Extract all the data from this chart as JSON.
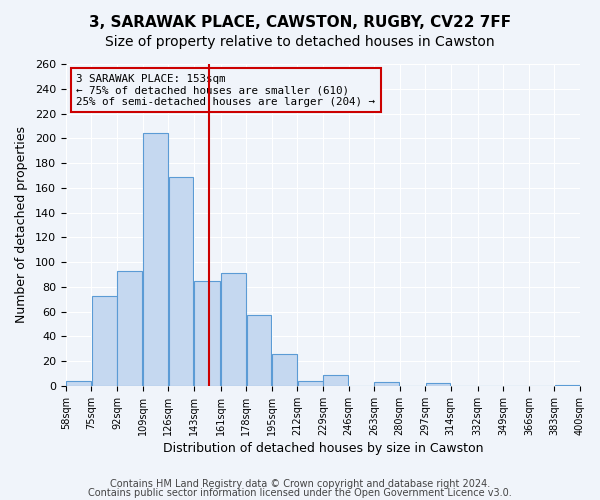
{
  "title": "3, SARAWAK PLACE, CAWSTON, RUGBY, CV22 7FF",
  "subtitle": "Size of property relative to detached houses in Cawston",
  "xlabel": "Distribution of detached houses by size in Cawston",
  "ylabel": "Number of detached properties",
  "bin_labels": [
    "58sqm",
    "75sqm",
    "92sqm",
    "109sqm",
    "126sqm",
    "143sqm",
    "161sqm",
    "178sqm",
    "195sqm",
    "212sqm",
    "229sqm",
    "246sqm",
    "263sqm",
    "280sqm",
    "297sqm",
    "314sqm",
    "332sqm",
    "349sqm",
    "366sqm",
    "383sqm",
    "400sqm"
  ],
  "bin_edges": [
    58,
    75,
    92,
    109,
    126,
    143,
    161,
    178,
    195,
    212,
    229,
    246,
    263,
    280,
    297,
    314,
    332,
    349,
    366,
    383,
    400
  ],
  "bar_heights": [
    4,
    73,
    93,
    204,
    169,
    85,
    91,
    57,
    26,
    4,
    9,
    0,
    3,
    0,
    2,
    0,
    0,
    0,
    0,
    1
  ],
  "bar_color": "#c5d8f0",
  "bar_edge_color": "#5b9bd5",
  "vline_x": 153,
  "vline_color": "#cc0000",
  "ylim": [
    0,
    260
  ],
  "yticks": [
    0,
    20,
    40,
    60,
    80,
    100,
    120,
    140,
    160,
    180,
    200,
    220,
    240,
    260
  ],
  "annotation_box_text": "3 SARAWAK PLACE: 153sqm\n← 75% of detached houses are smaller (610)\n25% of semi-detached houses are larger (204) →",
  "annotation_box_color": "#cc0000",
  "footer_line1": "Contains HM Land Registry data © Crown copyright and database right 2024.",
  "footer_line2": "Contains public sector information licensed under the Open Government Licence v3.0.",
  "bg_color": "#f0f4fa",
  "grid_color": "#ffffff",
  "title_fontsize": 11,
  "subtitle_fontsize": 10,
  "axis_label_fontsize": 9,
  "tick_fontsize": 8,
  "footer_fontsize": 7
}
